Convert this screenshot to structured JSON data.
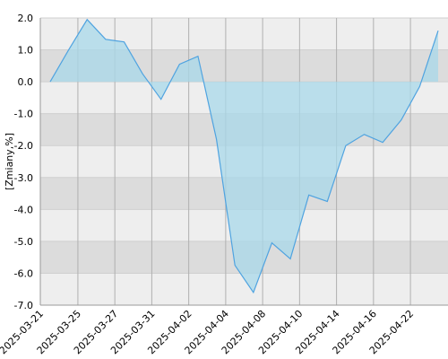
{
  "chart_data": {
    "type": "area",
    "y_label": "[Zmiany,%]",
    "categories": [
      "2025-03-21",
      null,
      "2025-03-25",
      null,
      "2025-03-27",
      null,
      "2025-03-31",
      null,
      "2025-04-02",
      null,
      "2025-04-04",
      null,
      "2025-04-08",
      null,
      "2025-04-10",
      null,
      "2025-04-14",
      null,
      "2025-04-16",
      null,
      "2025-04-22",
      null
    ],
    "values": [
      0.0,
      1.0,
      1.95,
      1.33,
      1.25,
      0.25,
      -0.55,
      0.55,
      0.8,
      -1.8,
      -5.75,
      -6.6,
      -5.05,
      -5.55,
      -3.55,
      -3.75,
      -2.0,
      -1.65,
      -1.9,
      -1.2,
      -0.15,
      1.6
    ],
    "color": "#4fa3e0",
    "fill_color": "#a8d8ea",
    "ylim": [
      -7,
      2
    ],
    "yticks": [
      {
        "value": 2,
        "label": "2.0"
      },
      {
        "value": 1,
        "label": "1.0"
      },
      {
        "value": 0,
        "label": "0.0"
      },
      {
        "value": -1,
        "label": "-1.0"
      },
      {
        "value": -2,
        "label": "-2.0"
      },
      {
        "value": -3,
        "label": "-3.0"
      },
      {
        "value": -4,
        "label": "-4.0"
      },
      {
        "value": -5,
        "label": "-5.0"
      },
      {
        "value": -6,
        "label": "-6.0"
      },
      {
        "value": -7,
        "label": "-7.0"
      }
    ],
    "grid": true
  }
}
